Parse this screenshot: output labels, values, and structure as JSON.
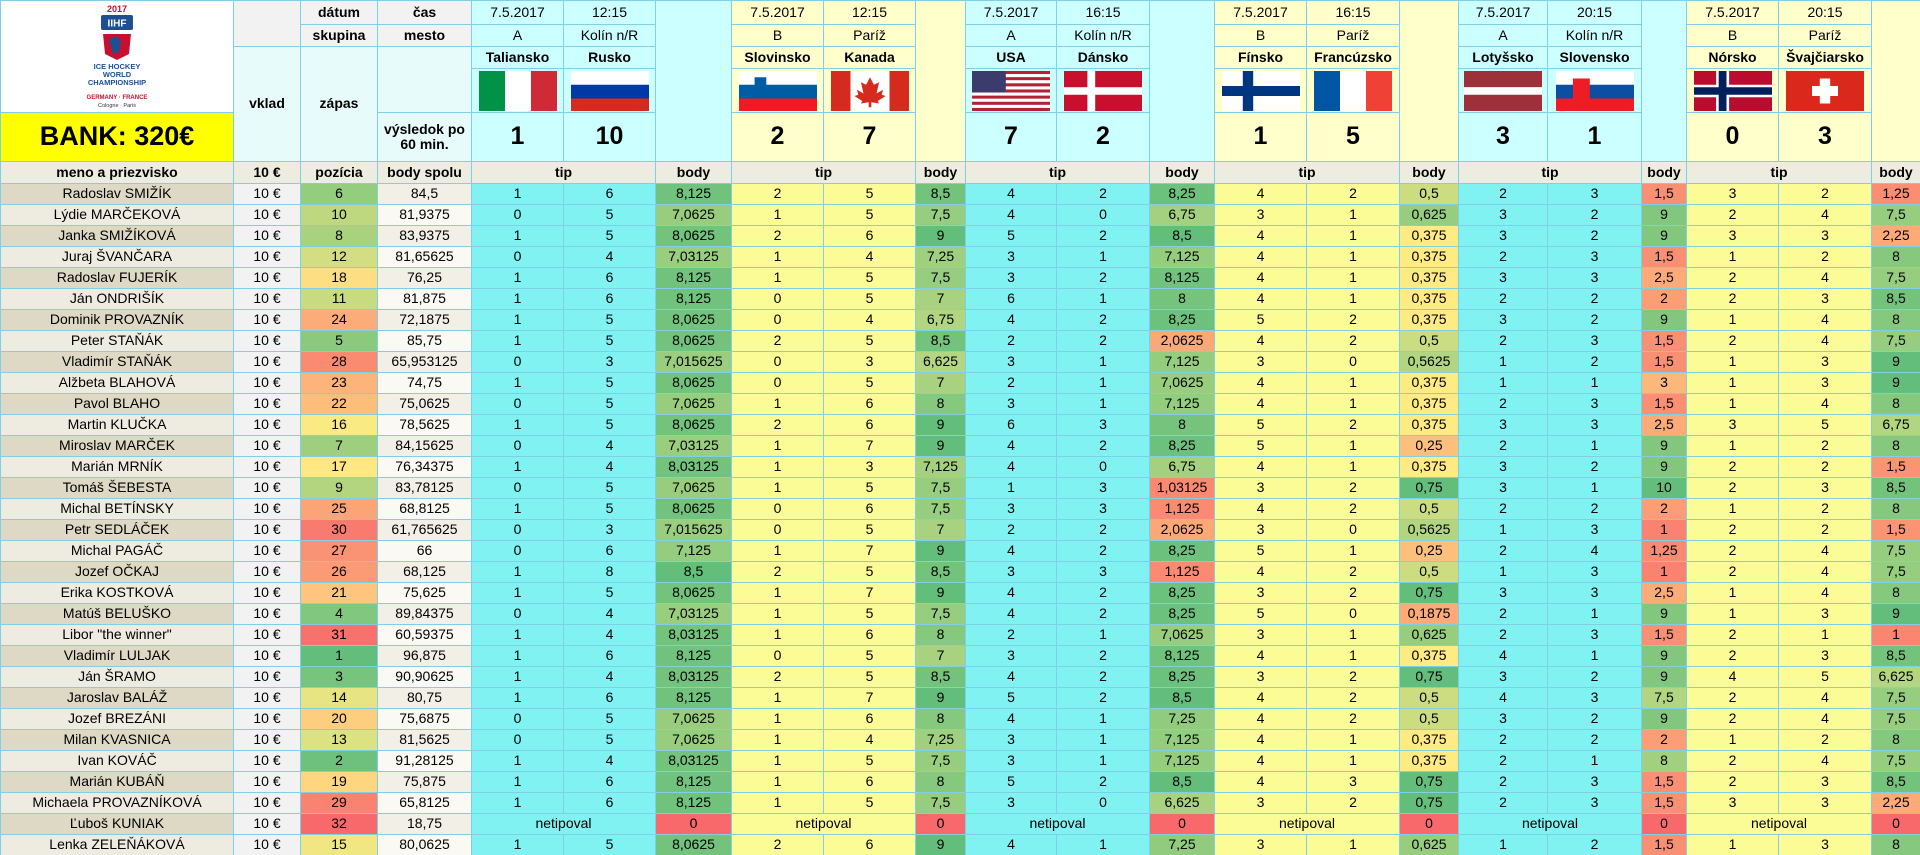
{
  "logo": {
    "year": "2017",
    "brand": "IIHF",
    "lines": [
      "ICE HOCKEY",
      "WORLD",
      "CHAMPIONSHIP"
    ],
    "hosts": "GERMANY · FRANCE",
    "cities": "Cologne · Paris"
  },
  "bank": "BANK: 320€",
  "header": {
    "date": "dátum",
    "time": "čas",
    "group": "skupina",
    "city": "mesto",
    "stake": "vklad",
    "match": "zápas",
    "result": "výsledok po 60 min.",
    "name": "meno a priezvisko",
    "stake_amount": "10 €",
    "position": "pozícia",
    "total": "body spolu",
    "tip": "tip",
    "points": "body"
  },
  "matches": [
    {
      "date": "7.5.2017",
      "time": "12:15",
      "group": "A",
      "city": "Kolín n/R",
      "home": "Taliansko",
      "away": "Rusko",
      "score": [
        "1",
        "10"
      ]
    },
    {
      "date": "7.5.2017",
      "time": "12:15",
      "group": "B",
      "city": "Paríž",
      "home": "Slovinsko",
      "away": "Kanada",
      "score": [
        "2",
        "7"
      ]
    },
    {
      "date": "7.5.2017",
      "time": "16:15",
      "group": "A",
      "city": "Kolín n/R",
      "home": "USA",
      "away": "Dánsko",
      "score": [
        "7",
        "2"
      ]
    },
    {
      "date": "7.5.2017",
      "time": "16:15",
      "group": "B",
      "city": "Paríž",
      "home": "Fínsko",
      "away": "Francúzsko",
      "score": [
        "1",
        "5"
      ]
    },
    {
      "date": "7.5.2017",
      "time": "20:15",
      "group": "A",
      "city": "Kolín n/R",
      "home": "Lotyšsko",
      "away": "Slovensko",
      "score": [
        "3",
        "1"
      ]
    },
    {
      "date": "7.5.2017",
      "time": "20:15",
      "group": "B",
      "city": "Paríž",
      "home": "Nórsko",
      "away": "Švajčiarsko",
      "score": [
        "0",
        "3"
      ]
    }
  ],
  "rows": [
    {
      "name": "Radoslav SMIŽÍK",
      "stake": "10 €",
      "position": "6",
      "total": "84,5",
      "picks": [
        [
          "1",
          "6",
          "8,125"
        ],
        [
          "2",
          "5",
          "8,5"
        ],
        [
          "4",
          "2",
          "8,25"
        ],
        [
          "4",
          "2",
          "0,5"
        ],
        [
          "2",
          "3",
          "1,5"
        ],
        [
          "3",
          "2",
          "1,25"
        ]
      ]
    },
    {
      "name": "Lýdie MARČEKOVÁ",
      "stake": "10 €",
      "position": "10",
      "total": "81,9375",
      "picks": [
        [
          "0",
          "5",
          "7,0625"
        ],
        [
          "1",
          "5",
          "7,5"
        ],
        [
          "4",
          "0",
          "6,75"
        ],
        [
          "3",
          "1",
          "0,625"
        ],
        [
          "3",
          "2",
          "9"
        ],
        [
          "2",
          "4",
          "7,5"
        ]
      ]
    },
    {
      "name": "Janka SMIŽÍKOVÁ",
      "stake": "10 €",
      "position": "8",
      "total": "83,9375",
      "picks": [
        [
          "1",
          "5",
          "8,0625"
        ],
        [
          "2",
          "6",
          "9"
        ],
        [
          "5",
          "2",
          "8,5"
        ],
        [
          "4",
          "1",
          "0,375"
        ],
        [
          "3",
          "2",
          "9"
        ],
        [
          "3",
          "3",
          "2,25"
        ]
      ]
    },
    {
      "name": "Juraj ŠVANČARA",
      "stake": "10 €",
      "position": "12",
      "total": "81,65625",
      "picks": [
        [
          "0",
          "4",
          "7,03125"
        ],
        [
          "1",
          "4",
          "7,25"
        ],
        [
          "3",
          "1",
          "7,125"
        ],
        [
          "4",
          "1",
          "0,375"
        ],
        [
          "2",
          "3",
          "1,5"
        ],
        [
          "1",
          "2",
          "8"
        ]
      ]
    },
    {
      "name": "Radoslav FUJERÍK",
      "stake": "10 €",
      "position": "18",
      "total": "76,25",
      "picks": [
        [
          "1",
          "6",
          "8,125"
        ],
        [
          "1",
          "5",
          "7,5"
        ],
        [
          "3",
          "2",
          "8,125"
        ],
        [
          "4",
          "1",
          "0,375"
        ],
        [
          "3",
          "3",
          "2,5"
        ],
        [
          "2",
          "4",
          "7,5"
        ]
      ]
    },
    {
      "name": "Ján ONDRIŠÍK",
      "stake": "10 €",
      "position": "11",
      "total": "81,875",
      "picks": [
        [
          "1",
          "6",
          "8,125"
        ],
        [
          "0",
          "5",
          "7"
        ],
        [
          "6",
          "1",
          "8"
        ],
        [
          "4",
          "1",
          "0,375"
        ],
        [
          "2",
          "2",
          "2"
        ],
        [
          "2",
          "3",
          "8,5"
        ]
      ]
    },
    {
      "name": "Dominik PROVAZNÍK",
      "stake": "10 €",
      "position": "24",
      "total": "72,1875",
      "picks": [
        [
          "1",
          "5",
          "8,0625"
        ],
        [
          "0",
          "4",
          "6,75"
        ],
        [
          "4",
          "2",
          "8,25"
        ],
        [
          "5",
          "2",
          "0,375"
        ],
        [
          "3",
          "2",
          "9"
        ],
        [
          "1",
          "4",
          "8"
        ]
      ]
    },
    {
      "name": "Peter STAŇÁK",
      "stake": "10 €",
      "position": "5",
      "total": "85,75",
      "picks": [
        [
          "1",
          "5",
          "8,0625"
        ],
        [
          "2",
          "5",
          "8,5"
        ],
        [
          "2",
          "2",
          "2,0625"
        ],
        [
          "4",
          "2",
          "0,5"
        ],
        [
          "2",
          "3",
          "1,5"
        ],
        [
          "2",
          "4",
          "7,5"
        ]
      ]
    },
    {
      "name": "Vladimír STAŇÁK",
      "stake": "10 €",
      "position": "28",
      "total": "65,953125",
      "picks": [
        [
          "0",
          "3",
          "7,015625"
        ],
        [
          "0",
          "3",
          "6,625"
        ],
        [
          "3",
          "1",
          "7,125"
        ],
        [
          "3",
          "0",
          "0,5625"
        ],
        [
          "1",
          "2",
          "1,5"
        ],
        [
          "1",
          "3",
          "9"
        ]
      ]
    },
    {
      "name": "Alžbeta BLAHOVÁ",
      "stake": "10 €",
      "position": "23",
      "total": "74,75",
      "picks": [
        [
          "1",
          "5",
          "8,0625"
        ],
        [
          "0",
          "5",
          "7"
        ],
        [
          "2",
          "1",
          "7,0625"
        ],
        [
          "4",
          "1",
          "0,375"
        ],
        [
          "1",
          "1",
          "3"
        ],
        [
          "1",
          "3",
          "9"
        ]
      ]
    },
    {
      "name": "Pavol BLAHO",
      "stake": "10 €",
      "position": "22",
      "total": "75,0625",
      "picks": [
        [
          "0",
          "5",
          "7,0625"
        ],
        [
          "1",
          "6",
          "8"
        ],
        [
          "3",
          "1",
          "7,125"
        ],
        [
          "4",
          "1",
          "0,375"
        ],
        [
          "2",
          "3",
          "1,5"
        ],
        [
          "1",
          "4",
          "8"
        ]
      ]
    },
    {
      "name": "Martin KLUČKA",
      "stake": "10 €",
      "position": "16",
      "total": "78,5625",
      "picks": [
        [
          "1",
          "5",
          "8,0625"
        ],
        [
          "2",
          "6",
          "9"
        ],
        [
          "6",
          "3",
          "8"
        ],
        [
          "5",
          "2",
          "0,375"
        ],
        [
          "3",
          "3",
          "2,5"
        ],
        [
          "3",
          "5",
          "6,75"
        ]
      ]
    },
    {
      "name": "Miroslav MARČEK",
      "stake": "10 €",
      "position": "7",
      "total": "84,15625",
      "picks": [
        [
          "0",
          "4",
          "7,03125"
        ],
        [
          "1",
          "7",
          "9"
        ],
        [
          "4",
          "2",
          "8,25"
        ],
        [
          "5",
          "1",
          "0,25"
        ],
        [
          "2",
          "1",
          "9"
        ],
        [
          "1",
          "2",
          "8"
        ]
      ]
    },
    {
      "name": "Marián MRNÍK",
      "stake": "10 €",
      "position": "17",
      "total": "76,34375",
      "picks": [
        [
          "1",
          "4",
          "8,03125"
        ],
        [
          "1",
          "3",
          "7,125"
        ],
        [
          "4",
          "0",
          "6,75"
        ],
        [
          "4",
          "1",
          "0,375"
        ],
        [
          "3",
          "2",
          "9"
        ],
        [
          "2",
          "2",
          "1,5"
        ]
      ]
    },
    {
      "name": "Tomáš ŠEBESTA",
      "stake": "10 €",
      "position": "9",
      "total": "83,78125",
      "picks": [
        [
          "0",
          "5",
          "7,0625"
        ],
        [
          "1",
          "5",
          "7,5"
        ],
        [
          "1",
          "3",
          "1,03125"
        ],
        [
          "3",
          "2",
          "0,75"
        ],
        [
          "3",
          "1",
          "10"
        ],
        [
          "2",
          "3",
          "8,5"
        ]
      ]
    },
    {
      "name": "Michal BETÍNSKY",
      "stake": "10 €",
      "position": "25",
      "total": "68,8125",
      "picks": [
        [
          "1",
          "5",
          "8,0625"
        ],
        [
          "0",
          "6",
          "7,5"
        ],
        [
          "3",
          "3",
          "1,125"
        ],
        [
          "4",
          "2",
          "0,5"
        ],
        [
          "2",
          "2",
          "2"
        ],
        [
          "1",
          "2",
          "8"
        ]
      ]
    },
    {
      "name": "Petr SEDLÁČEK",
      "stake": "10 €",
      "position": "30",
      "total": "61,765625",
      "picks": [
        [
          "0",
          "3",
          "7,015625"
        ],
        [
          "0",
          "5",
          "7"
        ],
        [
          "2",
          "2",
          "2,0625"
        ],
        [
          "3",
          "0",
          "0,5625"
        ],
        [
          "1",
          "3",
          "1"
        ],
        [
          "2",
          "2",
          "1,5"
        ]
      ]
    },
    {
      "name": "Michal PAGÁČ",
      "stake": "10 €",
      "position": "27",
      "total": "66",
      "picks": [
        [
          "0",
          "6",
          "7,125"
        ],
        [
          "1",
          "7",
          "9"
        ],
        [
          "4",
          "2",
          "8,25"
        ],
        [
          "5",
          "1",
          "0,25"
        ],
        [
          "2",
          "4",
          "1,25"
        ],
        [
          "2",
          "4",
          "7,5"
        ]
      ]
    },
    {
      "name": "Jozef OČKAJ",
      "stake": "10 €",
      "position": "26",
      "total": "68,125",
      "picks": [
        [
          "1",
          "8",
          "8,5"
        ],
        [
          "2",
          "5",
          "8,5"
        ],
        [
          "3",
          "3",
          "1,125"
        ],
        [
          "4",
          "2",
          "0,5"
        ],
        [
          "1",
          "3",
          "1"
        ],
        [
          "2",
          "4",
          "7,5"
        ]
      ]
    },
    {
      "name": "Erika KOSTKOVÁ",
      "stake": "10 €",
      "position": "21",
      "total": "75,625",
      "picks": [
        [
          "1",
          "5",
          "8,0625"
        ],
        [
          "1",
          "7",
          "9"
        ],
        [
          "4",
          "2",
          "8,25"
        ],
        [
          "3",
          "2",
          "0,75"
        ],
        [
          "3",
          "3",
          "2,5"
        ],
        [
          "1",
          "4",
          "8"
        ]
      ]
    },
    {
      "name": "Matúš BELUŠKO",
      "stake": "10 €",
      "position": "4",
      "total": "89,84375",
      "picks": [
        [
          "0",
          "4",
          "7,03125"
        ],
        [
          "1",
          "5",
          "7,5"
        ],
        [
          "4",
          "2",
          "8,25"
        ],
        [
          "5",
          "0",
          "0,1875"
        ],
        [
          "2",
          "1",
          "9"
        ],
        [
          "1",
          "3",
          "9"
        ]
      ]
    },
    {
      "name": "Libor \"the winner\"",
      "stake": "10 €",
      "position": "31",
      "total": "60,59375",
      "picks": [
        [
          "1",
          "4",
          "8,03125"
        ],
        [
          "1",
          "6",
          "8"
        ],
        [
          "2",
          "1",
          "7,0625"
        ],
        [
          "3",
          "1",
          "0,625"
        ],
        [
          "2",
          "3",
          "1,5"
        ],
        [
          "2",
          "1",
          "1"
        ]
      ]
    },
    {
      "name": "Vladimír LULJAK",
      "stake": "10 €",
      "position": "1",
      "total": "96,875",
      "picks": [
        [
          "1",
          "6",
          "8,125"
        ],
        [
          "0",
          "5",
          "7"
        ],
        [
          "3",
          "2",
          "8,125"
        ],
        [
          "4",
          "1",
          "0,375"
        ],
        [
          "4",
          "1",
          "9"
        ],
        [
          "2",
          "3",
          "8,5"
        ]
      ]
    },
    {
      "name": "Ján ŠRAMO",
      "stake": "10 €",
      "position": "3",
      "total": "90,90625",
      "picks": [
        [
          "1",
          "4",
          "8,03125"
        ],
        [
          "2",
          "5",
          "8,5"
        ],
        [
          "4",
          "2",
          "8,25"
        ],
        [
          "3",
          "2",
          "0,75"
        ],
        [
          "3",
          "2",
          "9"
        ],
        [
          "4",
          "5",
          "6,625"
        ]
      ]
    },
    {
      "name": "Jaroslav BALÁŽ",
      "stake": "10 €",
      "position": "14",
      "total": "80,75",
      "picks": [
        [
          "1",
          "6",
          "8,125"
        ],
        [
          "1",
          "7",
          "9"
        ],
        [
          "5",
          "2",
          "8,5"
        ],
        [
          "4",
          "2",
          "0,5"
        ],
        [
          "4",
          "3",
          "7,5"
        ],
        [
          "2",
          "4",
          "7,5"
        ]
      ]
    },
    {
      "name": "Jozef BREZÁNI",
      "stake": "10 €",
      "position": "20",
      "total": "75,6875",
      "picks": [
        [
          "0",
          "5",
          "7,0625"
        ],
        [
          "1",
          "6",
          "8"
        ],
        [
          "4",
          "1",
          "7,25"
        ],
        [
          "4",
          "2",
          "0,5"
        ],
        [
          "3",
          "2",
          "9"
        ],
        [
          "2",
          "4",
          "7,5"
        ]
      ]
    },
    {
      "name": "Milan KVASNICA",
      "stake": "10 €",
      "position": "13",
      "total": "81,5625",
      "picks": [
        [
          "0",
          "5",
          "7,0625"
        ],
        [
          "1",
          "4",
          "7,25"
        ],
        [
          "3",
          "1",
          "7,125"
        ],
        [
          "4",
          "1",
          "0,375"
        ],
        [
          "2",
          "2",
          "2"
        ],
        [
          "1",
          "2",
          "8"
        ]
      ]
    },
    {
      "name": "Ivan KOVÁČ",
      "stake": "10 €",
      "position": "2",
      "total": "91,28125",
      "picks": [
        [
          "1",
          "4",
          "8,03125"
        ],
        [
          "1",
          "5",
          "7,5"
        ],
        [
          "3",
          "1",
          "7,125"
        ],
        [
          "4",
          "1",
          "0,375"
        ],
        [
          "2",
          "1",
          "8"
        ],
        [
          "2",
          "4",
          "7,5"
        ]
      ]
    },
    {
      "name": "Marián KUBÁŇ",
      "stake": "10 €",
      "position": "19",
      "total": "75,875",
      "picks": [
        [
          "1",
          "6",
          "8,125"
        ],
        [
          "1",
          "6",
          "8"
        ],
        [
          "5",
          "2",
          "8,5"
        ],
        [
          "4",
          "3",
          "0,75"
        ],
        [
          "2",
          "3",
          "1,5"
        ],
        [
          "2",
          "3",
          "8,5"
        ]
      ]
    },
    {
      "name": "Michaela PROVAZNÍKOVÁ",
      "stake": "10 €",
      "position": "29",
      "total": "65,8125",
      "picks": [
        [
          "1",
          "6",
          "8,125"
        ],
        [
          "1",
          "5",
          "7,5"
        ],
        [
          "3",
          "0",
          "6,625"
        ],
        [
          "3",
          "2",
          "0,75"
        ],
        [
          "2",
          "3",
          "1,5"
        ],
        [
          "3",
          "3",
          "2,25"
        ]
      ]
    },
    {
      "name": "Ľuboš KUNIAK",
      "stake": "10 €",
      "position": "32",
      "total": "18,75",
      "picks": [
        [
          "netipoval",
          "0"
        ],
        [
          "netipoval",
          "0"
        ],
        [
          "netipoval",
          "0"
        ],
        [
          "netipoval",
          "0"
        ],
        [
          "netipoval",
          "0"
        ],
        [
          "netipoval",
          "0"
        ]
      ]
    },
    {
      "name": "Lenka ZELEŇÁKOVÁ",
      "stake": "10 €",
      "position": "15",
      "total": "80,0625",
      "picks": [
        [
          "1",
          "5",
          "8,0625"
        ],
        [
          "2",
          "6",
          "9"
        ],
        [
          "4",
          "1",
          "7,25"
        ],
        [
          "3",
          "1",
          "0,625"
        ],
        [
          "1",
          "2",
          "1,5"
        ],
        [
          "1",
          "3",
          "8"
        ]
      ]
    }
  ]
}
